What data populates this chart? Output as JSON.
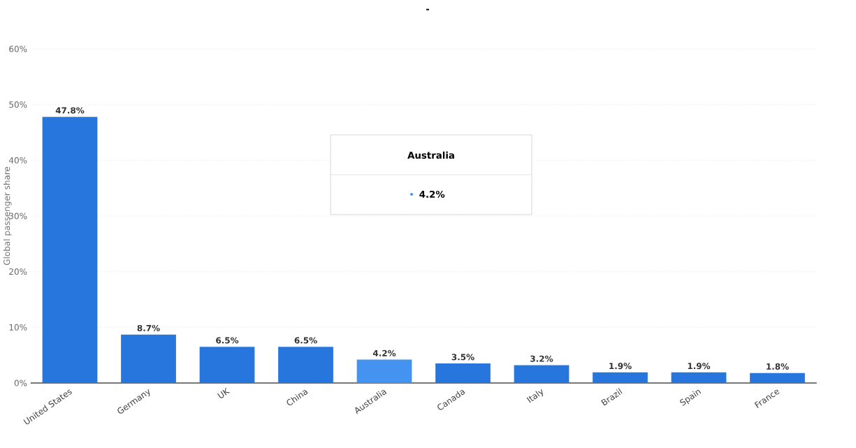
{
  "chart_data": {
    "type": "bar",
    "title": "-",
    "ylabel": "Global passenger share",
    "categories": [
      "United States",
      "Germany",
      "UK",
      "China",
      "Australia",
      "Canada",
      "Italy",
      "Brazil",
      "Spain",
      "France"
    ],
    "values": [
      47.8,
      8.7,
      6.5,
      6.5,
      4.2,
      3.5,
      3.2,
      1.9,
      1.9,
      1.8
    ],
    "value_labels": [
      "47.8%",
      "8.7%",
      "6.5%",
      "6.5%",
      "4.2%",
      "3.5%",
      "3.2%",
      "1.9%",
      "1.9%",
      "1.8%"
    ],
    "colors": [
      "#2776de",
      "#2776de",
      "#2776de",
      "#2776de",
      "#4493f0",
      "#2776de",
      "#2776de",
      "#2776de",
      "#2776de",
      "#2776de"
    ],
    "ylim": [
      0,
      60
    ],
    "yticks": [
      {
        "value": 0,
        "label": "0%"
      },
      {
        "value": 10,
        "label": "10%"
      },
      {
        "value": 20,
        "label": "20%"
      },
      {
        "value": 30,
        "label": "30%"
      },
      {
        "value": 40,
        "label": "40%"
      },
      {
        "value": 50,
        "label": "50%"
      },
      {
        "value": 60,
        "label": "60%"
      }
    ],
    "grid": "y",
    "annotations": [
      "Australia",
      "4.2%"
    ]
  }
}
